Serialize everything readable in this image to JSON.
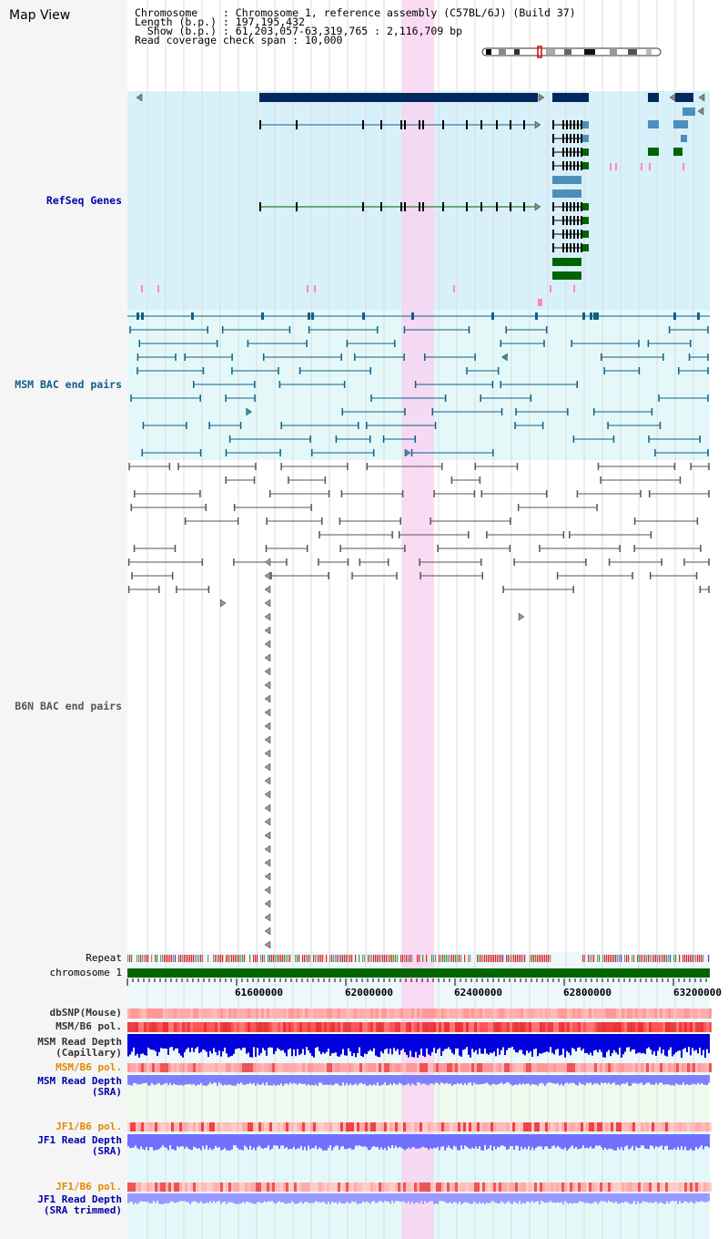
{
  "app_title": "Map View",
  "info": {
    "chromosome_label": "Chromosome    : ",
    "chromosome_value": "Chromosome 1, reference assembly (C57BL/6J) (Build 37)",
    "length_label": "Length (b.p.) : ",
    "length_value": "197,195,432",
    "show_label": "  Show (b.p.) : ",
    "show_value": "61,203,057-63,319,765 : 2,116,709 bp",
    "span_label": "Read coverage check span : ",
    "span_value": "10,000"
  },
  "tracks": {
    "refseq": "RefSeq Genes",
    "msm_bac": "MSM BAC end pairs",
    "b6n_bac": "B6N BAC end pairs",
    "repeat": "Repeat",
    "chromosome": "chromosome 1",
    "dbsnp": "dbSNP(Mouse)",
    "msm_b6_pol_1": "MSM/B6 pol.",
    "msm_depth_cap_1": "MSM Read Depth",
    "msm_depth_cap_2": "(Capillary)",
    "msm_b6_pol_2": "MSM/B6 pol.",
    "msm_depth_sra_1": "MSM Read Depth",
    "msm_depth_sra_2": "(SRA)",
    "jf1_b6_pol_1": "JF1/B6 pol.",
    "jf1_depth_sra_1": "JF1 Read Depth",
    "jf1_depth_sra_2": "(SRA)",
    "jf1_b6_pol_2": "JF1/B6 pol.",
    "jf1_depth_trim_1": "JF1 Read Depth",
    "jf1_depth_trim_2": "(SRA trimmed)"
  },
  "axis": {
    "ticks": [
      "61600000",
      "62000000",
      "62400000",
      "62800000",
      "63200000"
    ]
  },
  "colors": {
    "refseq_bg": "#d8f0fa",
    "msm_bg": "#e4f8fa",
    "highlight": "#f9d5f2",
    "gene_dark": "#002a5e",
    "gene_green": "#006400",
    "gene_light": "#4d8fba",
    "msm_pair": "#0f5f87",
    "b6n_pair": "#555555",
    "chrom_bar": "#006400",
    "snp_pink": "#ffaaaa",
    "snp_red": "#ee3333",
    "depth_blue": "#0000dd",
    "depth_light": "#8080ff",
    "label_blue": "#0000aa",
    "label_orange": "#e08a00"
  }
}
